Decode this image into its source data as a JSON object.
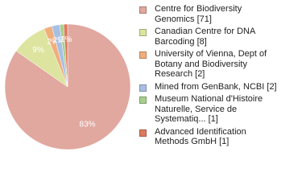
{
  "chart_data": {
    "type": "pie",
    "series": [
      {
        "name": "Centre for Biodiversity Genomics [71]",
        "color": "#e1a89f"
      },
      {
        "name": "Canadian Centre for DNA Barcoding [8]",
        "color": "#dce49f"
      },
      {
        "name": "University of Vienna, Dept of Botany and Biodiversity Research [2]",
        "color": "#f0ae7c"
      },
      {
        "name": "Mined from GenBank, NCBI [2]",
        "color": "#a8bfe4"
      },
      {
        "name": "Museum National d'Histoire Naturelle, Service de Systematiq... [1]",
        "color": "#a9cf8d"
      },
      {
        "name": "Advanced Identification Methods GmbH [1]",
        "color": "#dc7a5d"
      }
    ],
    "values": [
      83,
      9,
      2,
      2,
      1,
      1
    ],
    "value_labels": [
      "83%",
      "9%",
      "2%",
      "2%",
      "1%",
      "1%"
    ]
  }
}
